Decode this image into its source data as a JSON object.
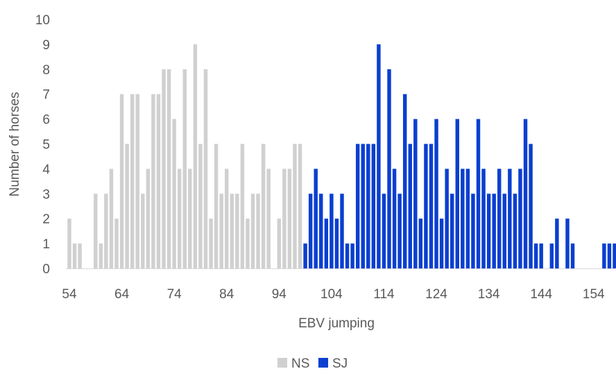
{
  "chart_data": {
    "type": "bar",
    "xlabel": "EBV jumping",
    "ylabel": "Number of horses",
    "xlim": [
      54,
      158
    ],
    "ylim": [
      0,
      10
    ],
    "x_ticks": [
      54,
      64,
      74,
      84,
      94,
      104,
      114,
      124,
      134,
      144,
      154
    ],
    "y_ticks": [
      0,
      1,
      2,
      3,
      4,
      5,
      6,
      7,
      8,
      9,
      10
    ],
    "grid": false,
    "legend": "bottom",
    "series": [
      {
        "name": "NS",
        "color": "#d0d0d0",
        "x": [
          54,
          55,
          56,
          57,
          58,
          59,
          60,
          61,
          62,
          63,
          64,
          65,
          66,
          67,
          68,
          69,
          70,
          71,
          72,
          73,
          74,
          75,
          76,
          77,
          78,
          79,
          80,
          81,
          82,
          83,
          84,
          85,
          86,
          87,
          88,
          89,
          90,
          91,
          92,
          93,
          94,
          95,
          96,
          97,
          98,
          99
        ],
        "values": [
          2,
          1,
          1,
          0,
          0,
          3,
          1,
          3,
          4,
          2,
          7,
          5,
          7,
          7,
          3,
          4,
          7,
          7,
          8,
          8,
          6,
          4,
          8,
          4,
          9,
          5,
          8,
          2,
          5,
          3,
          4,
          3,
          3,
          5,
          2,
          3,
          3,
          5,
          4,
          0,
          2,
          4,
          4,
          5,
          5,
          1
        ]
      },
      {
        "name": "SJ",
        "color": "#0a3fd0",
        "x": [
          99,
          100,
          101,
          102,
          103,
          104,
          105,
          106,
          107,
          108,
          109,
          110,
          111,
          112,
          113,
          114,
          115,
          116,
          117,
          118,
          119,
          120,
          121,
          122,
          123,
          124,
          125,
          126,
          127,
          128,
          129,
          130,
          131,
          132,
          133,
          134,
          135,
          136,
          137,
          138,
          139,
          140,
          141,
          142,
          143,
          144,
          145,
          146,
          147,
          148,
          149,
          150,
          151,
          152,
          153,
          154,
          155,
          156,
          157,
          158
        ],
        "values": [
          1,
          3,
          4,
          3,
          2,
          3,
          2,
          3,
          1,
          1,
          5,
          5,
          5,
          5,
          9,
          3,
          8,
          4,
          3,
          7,
          5,
          6,
          2,
          5,
          5,
          6,
          2,
          4,
          3,
          6,
          4,
          4,
          3,
          6,
          4,
          3,
          3,
          4,
          3,
          4,
          3,
          4,
          6,
          5,
          1,
          1,
          0,
          1,
          2,
          0,
          2,
          1,
          0,
          0,
          0,
          0,
          0,
          1,
          1,
          1
        ]
      }
    ]
  }
}
